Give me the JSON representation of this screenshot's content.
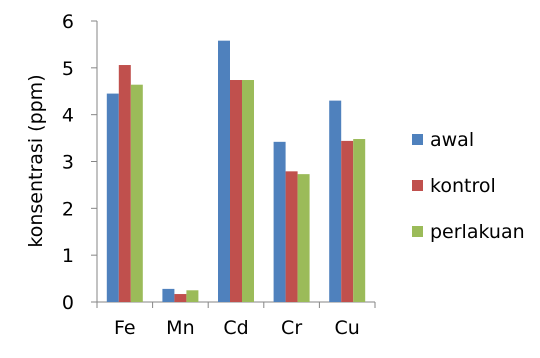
{
  "chart_data": {
    "type": "bar",
    "title": "",
    "xlabel": "",
    "ylabel": "konsentrasi (ppm)",
    "categories": [
      "Fe",
      "Mn",
      "Cd",
      "Cr",
      "Cu"
    ],
    "series": [
      {
        "name": "awal",
        "color": "#4F81BD",
        "values": [
          4.45,
          0.28,
          5.58,
          3.42,
          4.3
        ]
      },
      {
        "name": "kontrol",
        "color": "#C0504D",
        "values": [
          5.06,
          0.17,
          4.74,
          2.79,
          3.44
        ]
      },
      {
        "name": "perlakuan",
        "color": "#9BBB59",
        "values": [
          4.64,
          0.25,
          4.74,
          2.73,
          3.48
        ]
      }
    ],
    "ylim": [
      0,
      6
    ],
    "yticks": [
      0,
      1,
      2,
      3,
      4,
      5,
      6
    ],
    "grid": false,
    "legend_position": "right"
  }
}
